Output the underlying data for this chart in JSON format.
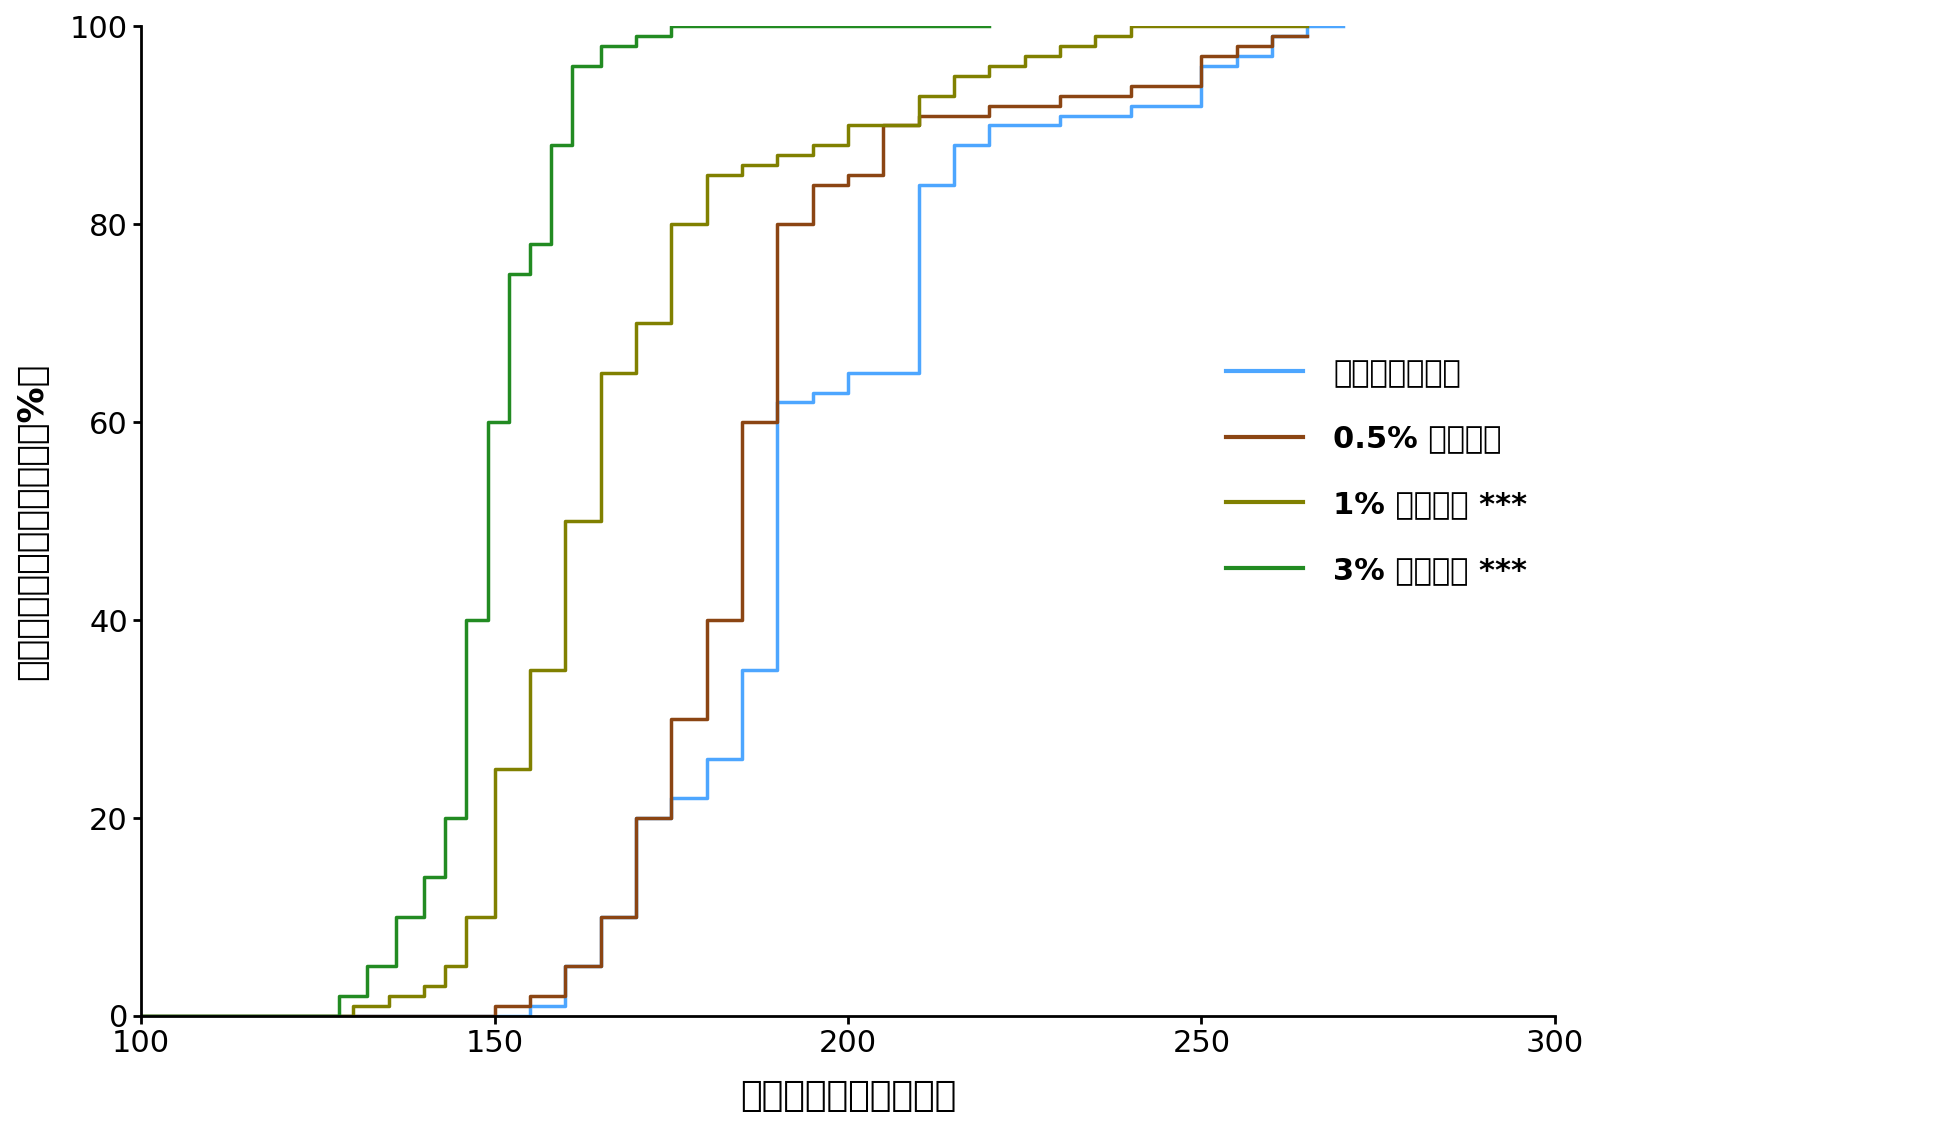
{
  "xlabel": "産卵後の時間（時間）",
  "ylabel": "前蛹になった個体の割合（%）",
  "xlim": [
    100,
    300
  ],
  "ylim": [
    0,
    100
  ],
  "xticks": [
    100,
    150,
    200,
    250,
    300
  ],
  "yticks": [
    0,
    20,
    40,
    60,
    80,
    100
  ],
  "background_color": "#ffffff",
  "legend_entries": [
    "コントロール群",
    "0.5% クロレラ",
    "1% クロレラ ***",
    "3% クロレラ ***"
  ],
  "series": {
    "control": {
      "color": "#4da6ff",
      "x": [
        100,
        148,
        148,
        150,
        150,
        155,
        155,
        160,
        160,
        165,
        165,
        170,
        170,
        175,
        175,
        180,
        180,
        185,
        185,
        190,
        190,
        195,
        195,
        200,
        200,
        210,
        210,
        215,
        215,
        220,
        220,
        230,
        230,
        240,
        240,
        250,
        250,
        255,
        255,
        260,
        260,
        265,
        265,
        270
      ],
      "y": [
        0,
        0,
        0,
        0,
        0,
        0,
        1,
        1,
        5,
        5,
        10,
        10,
        20,
        20,
        22,
        22,
        26,
        26,
        35,
        35,
        62,
        62,
        63,
        63,
        65,
        65,
        84,
        84,
        88,
        88,
        90,
        90,
        91,
        91,
        92,
        92,
        96,
        96,
        97,
        97,
        99,
        99,
        100,
        100
      ]
    },
    "half_percent": {
      "color": "#8B4513",
      "x": [
        100,
        148,
        148,
        150,
        150,
        155,
        155,
        160,
        160,
        165,
        165,
        170,
        170,
        175,
        175,
        180,
        180,
        185,
        185,
        190,
        190,
        195,
        195,
        200,
        200,
        205,
        205,
        210,
        210,
        220,
        220,
        230,
        230,
        240,
        240,
        250,
        250,
        255,
        255,
        260,
        260,
        265
      ],
      "y": [
        0,
        0,
        0,
        0,
        1,
        1,
        2,
        2,
        5,
        5,
        10,
        10,
        20,
        20,
        30,
        30,
        40,
        40,
        60,
        60,
        80,
        80,
        84,
        84,
        85,
        85,
        90,
        90,
        91,
        91,
        92,
        92,
        93,
        93,
        94,
        94,
        97,
        97,
        98,
        98,
        99,
        99
      ]
    },
    "one_percent": {
      "color": "#808000",
      "x": [
        100,
        130,
        130,
        135,
        135,
        140,
        140,
        143,
        143,
        146,
        146,
        150,
        150,
        155,
        155,
        160,
        160,
        165,
        165,
        170,
        170,
        175,
        175,
        180,
        180,
        185,
        185,
        190,
        190,
        195,
        195,
        200,
        200,
        210,
        210,
        215,
        215,
        220,
        220,
        225,
        225,
        230,
        230,
        235,
        235,
        240,
        240,
        250,
        250,
        255,
        255,
        260,
        260,
        265
      ],
      "y": [
        0,
        0,
        1,
        1,
        2,
        2,
        3,
        3,
        5,
        5,
        10,
        10,
        25,
        25,
        35,
        35,
        50,
        50,
        65,
        65,
        70,
        70,
        80,
        80,
        85,
        85,
        86,
        86,
        87,
        87,
        88,
        88,
        90,
        90,
        93,
        93,
        95,
        95,
        96,
        96,
        97,
        97,
        98,
        98,
        99,
        99,
        100,
        100,
        100,
        100,
        100,
        100,
        100,
        100
      ]
    },
    "three_percent": {
      "color": "#228B22",
      "x": [
        100,
        128,
        128,
        132,
        132,
        136,
        136,
        140,
        140,
        143,
        143,
        146,
        146,
        149,
        149,
        152,
        152,
        155,
        155,
        158,
        158,
        161,
        161,
        165,
        165,
        170,
        170,
        175,
        175,
        180,
        180,
        185,
        185,
        190,
        190,
        200,
        200,
        210,
        210,
        220,
        220
      ],
      "y": [
        0,
        0,
        2,
        2,
        5,
        5,
        10,
        10,
        14,
        14,
        20,
        20,
        40,
        40,
        60,
        60,
        75,
        75,
        78,
        78,
        88,
        88,
        96,
        96,
        98,
        98,
        99,
        99,
        100,
        100,
        100,
        100,
        100,
        100,
        100,
        100,
        100,
        100,
        100,
        100,
        100
      ]
    }
  }
}
